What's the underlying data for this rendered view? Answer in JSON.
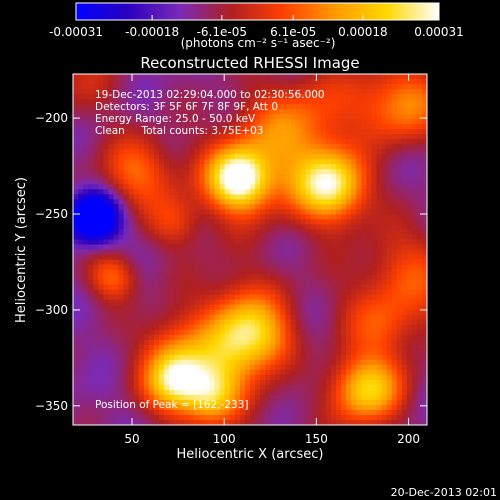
{
  "chart_data": {
    "type": "heatmap",
    "title": "Reconstructed RHESSI Image",
    "xlabel": "Heliocentric X (arcsec)",
    "ylabel": "Heliocentric Y (arcsec)",
    "xlim": [
      18,
      210
    ],
    "ylim": [
      -360,
      -177
    ],
    "xticks": [
      50,
      100,
      150,
      200
    ],
    "yticks": [
      -200,
      -250,
      -300,
      -350
    ],
    "colorbar": {
      "min": -0.00031,
      "max": 0.00031,
      "tick_values": [
        -0.00031,
        -0.00018,
        -6.1e-05,
        6.1e-05,
        0.00018,
        0.00031
      ],
      "tick_labels": [
        "-0.00031",
        "-0.00018",
        "-6.1e-05",
        "6.1e-05",
        "0.00018",
        "0.00031"
      ],
      "unit_label": "(photons cm⁻² s⁻¹ asec⁻²)",
      "colors": [
        "#0000ff",
        "#2a00c0",
        "#7a2ab8",
        "#b02020",
        "#ff4000",
        "#ff9a00",
        "#ffd800",
        "#ffffff"
      ]
    },
    "annotations": [
      "19-Dec-2013 02:29:04.000 to 02:30:56.000",
      "Detectors: 3F 5F 6F 7F 8F 9F, Att 0",
      "Energy Range: 25.0 - 50.0 keV",
      "Clean     Total counts: 3.75E+03"
    ],
    "peak_label": "Position of Peak = [162,-233]",
    "peak": [
      162,
      -233
    ]
  },
  "footer": {
    "timestamp": "20-Dec-2013 02:01"
  }
}
